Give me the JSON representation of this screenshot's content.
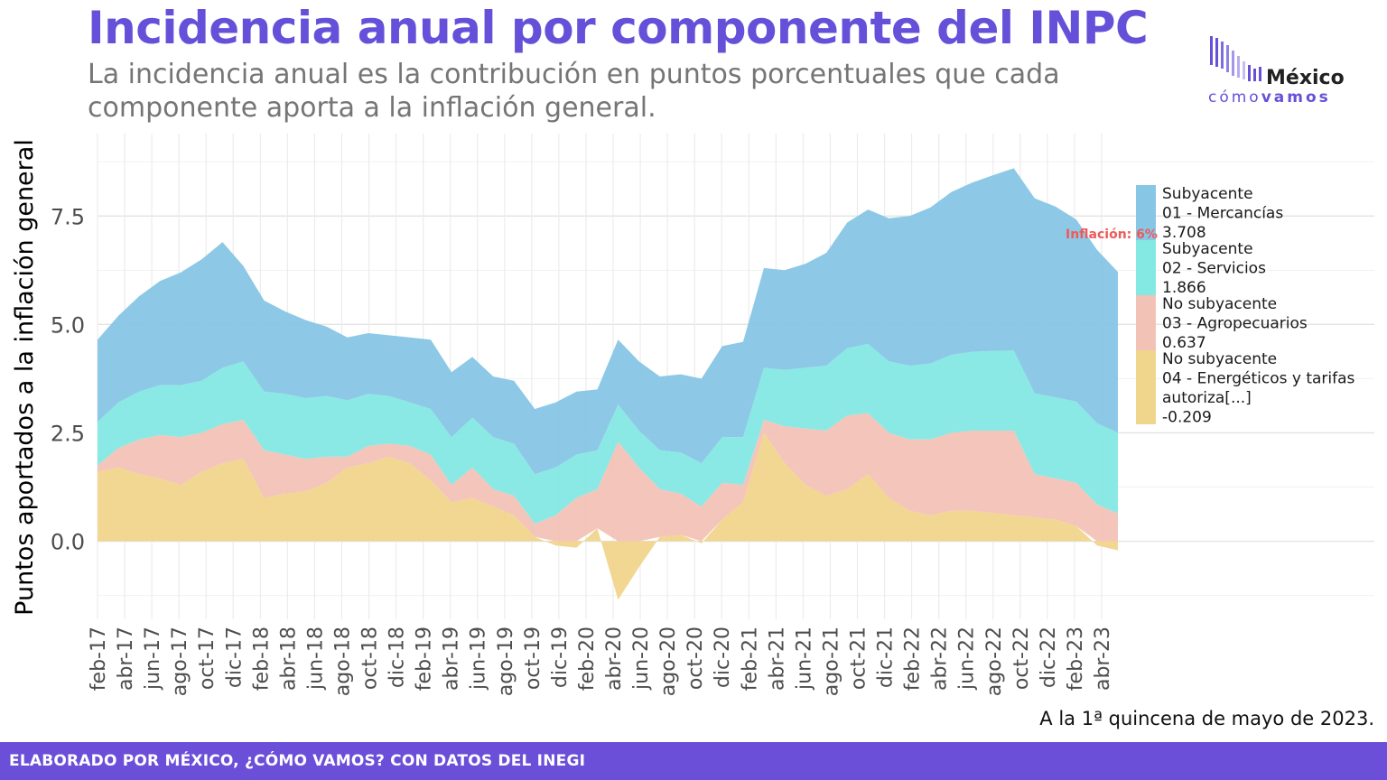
{
  "title": "Incidencia anual por componente del INPC",
  "subtitle": "La incidencia anual es la contribución en puntos porcentuales que cada componente aporta a la inflación general.",
  "logo": {
    "word": "México",
    "sub_light": "cómo",
    "sub_bold": "vamos"
  },
  "date_note": "A la 1ª quincena de mayo de 2023.",
  "footer": "ELABORADO POR MÉXICO, ¿CÓMO VAMOS? CON DATOS DEL INEGI",
  "annotation": "Inflación: 6%",
  "colors": {
    "title": "#6551d9",
    "footer": "#6b4fd8",
    "annotation": "#ee5a5a"
  },
  "chart_data": {
    "type": "area",
    "stacked": true,
    "ylabel": "Puntos aportados a la inflación general",
    "ylim": [
      -1.8,
      9.4
    ],
    "yticks": [
      0.0,
      2.5,
      5.0,
      7.5
    ],
    "ytick_labels": [
      "0.0",
      "2.5",
      "5.0",
      "7.5"
    ],
    "x_tick_labels": [
      "feb-17",
      "abr-17",
      "jun-17",
      "ago-17",
      "oct-17",
      "dic-17",
      "feb-18",
      "abr-18",
      "jun-18",
      "ago-18",
      "oct-18",
      "dic-18",
      "feb-19",
      "abr-19",
      "jun-19",
      "ago-19",
      "oct-19",
      "dic-19",
      "feb-20",
      "abr-20",
      "jun-20",
      "ago-20",
      "oct-20",
      "dic-20",
      "feb-21",
      "abr-21",
      "jun-21",
      "ago-21",
      "oct-21",
      "dic-21",
      "feb-22",
      "abr-22",
      "jun-22",
      "ago-22",
      "oct-22",
      "dic-22",
      "feb-23",
      "abr-23"
    ],
    "x_last_index": 37.6,
    "grid": true,
    "legend_position": "right",
    "series": [
      {
        "name": "No subyacente 04 - Energéticos y tarifas autoriza[...]",
        "legend_lines": [
          "No subyacente",
          "04 - Energéticos y tarifas",
          "autoriza[...]",
          "-0.209"
        ],
        "color": "#f0d58c",
        "latest": -0.209,
        "values": [
          1.6,
          1.7,
          1.55,
          1.45,
          1.3,
          1.6,
          1.8,
          1.9,
          1.0,
          1.1,
          1.15,
          1.35,
          1.7,
          1.8,
          1.95,
          1.8,
          1.4,
          0.9,
          1.0,
          0.8,
          0.6,
          0.1,
          -0.1,
          -0.15,
          0.3,
          -1.35,
          -0.6,
          0.1,
          0.15,
          -0.05,
          0.5,
          0.9,
          2.5,
          1.8,
          1.3,
          1.05,
          1.2,
          1.55,
          1.0,
          0.7,
          0.6,
          0.7,
          0.7,
          0.65,
          0.6,
          0.55,
          0.5,
          0.35,
          -0.1,
          -0.209
        ]
      },
      {
        "name": "No subyacente 03 - Agropecuarios",
        "legend_lines": [
          "No subyacente",
          "03 - Agropecuarios",
          "0.637"
        ],
        "color": "#f3c2b6",
        "latest": 0.637,
        "values": [
          0.15,
          0.45,
          0.8,
          1.0,
          1.1,
          0.9,
          0.9,
          0.9,
          1.1,
          0.9,
          0.75,
          0.6,
          0.25,
          0.4,
          0.3,
          0.4,
          0.6,
          0.4,
          0.7,
          0.4,
          0.45,
          0.3,
          0.6,
          1.0,
          0.9,
          2.3,
          1.7,
          1.1,
          0.95,
          0.8,
          0.85,
          0.4,
          0.3,
          0.85,
          1.3,
          1.5,
          1.7,
          1.4,
          1.5,
          1.65,
          1.75,
          1.8,
          1.85,
          1.9,
          1.95,
          1.0,
          0.95,
          1.0,
          0.85,
          0.637
        ]
      },
      {
        "name": "Subyacente 02 - Servicios",
        "legend_lines": [
          "Subyacente",
          "02 - Servicios",
          "1.866"
        ],
        "color": "#84e8e3",
        "latest": 1.866,
        "values": [
          1.0,
          1.05,
          1.1,
          1.15,
          1.2,
          1.2,
          1.3,
          1.35,
          1.35,
          1.4,
          1.4,
          1.4,
          1.3,
          1.2,
          1.1,
          1.0,
          1.05,
          1.1,
          1.15,
          1.2,
          1.2,
          1.15,
          1.1,
          1.0,
          0.9,
          0.85,
          0.85,
          0.9,
          0.95,
          1.0,
          1.05,
          1.1,
          1.2,
          1.3,
          1.4,
          1.5,
          1.55,
          1.6,
          1.65,
          1.7,
          1.75,
          1.8,
          1.82,
          1.84,
          1.85,
          1.86,
          1.87,
          1.87,
          1.87,
          1.866
        ]
      },
      {
        "name": "Subyacente 01 - Mercancías",
        "legend_lines": [
          "Subyacente",
          "01 - Mercancías",
          "3.708"
        ],
        "color": "#87c6e5",
        "latest": 3.708,
        "values": [
          1.9,
          2.0,
          2.2,
          2.4,
          2.6,
          2.8,
          2.9,
          2.2,
          2.1,
          1.9,
          1.8,
          1.6,
          1.45,
          1.4,
          1.4,
          1.5,
          1.6,
          1.5,
          1.4,
          1.4,
          1.45,
          1.5,
          1.5,
          1.45,
          1.4,
          1.5,
          1.6,
          1.7,
          1.8,
          1.95,
          2.1,
          2.2,
          2.3,
          2.3,
          2.4,
          2.6,
          2.9,
          3.1,
          3.3,
          3.45,
          3.6,
          3.75,
          3.9,
          4.05,
          4.2,
          4.5,
          4.4,
          4.2,
          4.0,
          3.708
        ]
      }
    ]
  }
}
